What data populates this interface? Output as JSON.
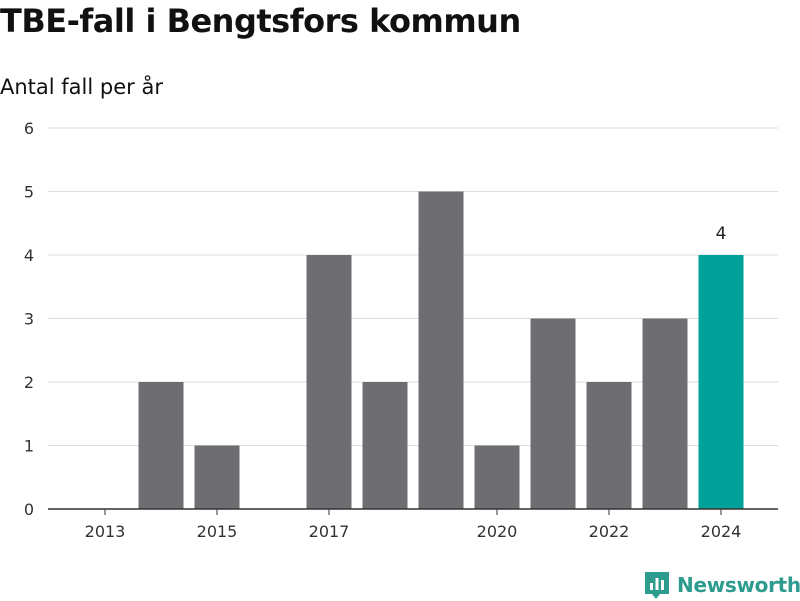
{
  "header": {
    "title": "TBE-fall i Bengtsfors kommun",
    "subtitle": "Antal fall per år"
  },
  "brand": {
    "name": "Newsworthy",
    "logo_icon": "newsworthy-logo-icon",
    "color": "#2d9c8e"
  },
  "chart_data": {
    "type": "bar",
    "title": "TBE-fall i Bengtsfors kommun",
    "subtitle": "Antal fall per år",
    "xlabel": "",
    "ylabel": "",
    "categories": [
      "2013",
      "2014",
      "2015",
      "2016",
      "2017",
      "2018",
      "2019",
      "2020",
      "2021",
      "2022",
      "2023",
      "2024"
    ],
    "values": [
      0,
      2,
      1,
      0,
      4,
      2,
      5,
      1,
      3,
      2,
      3,
      4
    ],
    "x_tick_labels": [
      "2013",
      "2015",
      "2017",
      "2020",
      "2022",
      "2024"
    ],
    "y_ticks": [
      0,
      1,
      2,
      3,
      4,
      5,
      6
    ],
    "ylim": [
      0,
      6
    ],
    "grid": true,
    "legend": "none",
    "highlight": {
      "category": "2024",
      "label": "4"
    },
    "colors": {
      "bar": "#6e6d72",
      "highlight": "#00a19a",
      "grid": "#dddddd",
      "axis": "#333333"
    }
  }
}
